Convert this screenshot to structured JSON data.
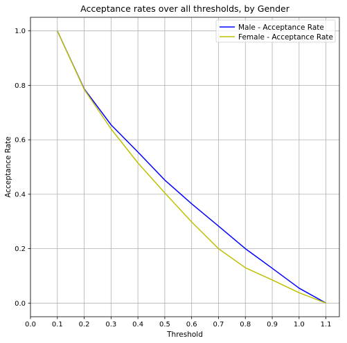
{
  "chart_data": {
    "type": "line",
    "title": "Acceptance rates over all thresholds, by Gender",
    "xlabel": "Threshold",
    "ylabel": "Acceptance Rate",
    "xlim": [
      0.0,
      1.15
    ],
    "ylim": [
      -0.05,
      1.05
    ],
    "xticks": [
      0.0,
      0.1,
      0.2,
      0.3,
      0.4,
      0.5,
      0.6,
      0.7,
      0.8,
      0.9,
      1.0,
      1.1
    ],
    "xtick_labels": [
      "0.0",
      "0.1",
      "0.2",
      "0.3",
      "0.4",
      "0.5",
      "0.6",
      "0.7",
      "0.8",
      "0.9",
      "1.0",
      "1.1"
    ],
    "yticks": [
      0.0,
      0.2,
      0.4,
      0.6,
      0.8,
      1.0
    ],
    "ytick_labels": [
      "0.0",
      "0.2",
      "0.4",
      "0.6",
      "0.8",
      "1.0"
    ],
    "grid": true,
    "legend_position": "top-right",
    "x": [
      0.1,
      0.2,
      0.3,
      0.4,
      0.5,
      0.6,
      0.7,
      0.8,
      0.9,
      1.0,
      1.1
    ],
    "series": [
      {
        "name": "Male - Acceptance Rate",
        "color": "#0000ff",
        "values": [
          1.0,
          0.787,
          0.655,
          0.555,
          0.452,
          0.365,
          0.283,
          0.2,
          0.128,
          0.055,
          0.0
        ]
      },
      {
        "name": "Female - Acceptance Rate",
        "color": "#bfbf00",
        "values": [
          1.0,
          0.785,
          0.64,
          0.515,
          0.405,
          0.298,
          0.2,
          0.13,
          0.085,
          0.038,
          0.0
        ]
      }
    ]
  }
}
